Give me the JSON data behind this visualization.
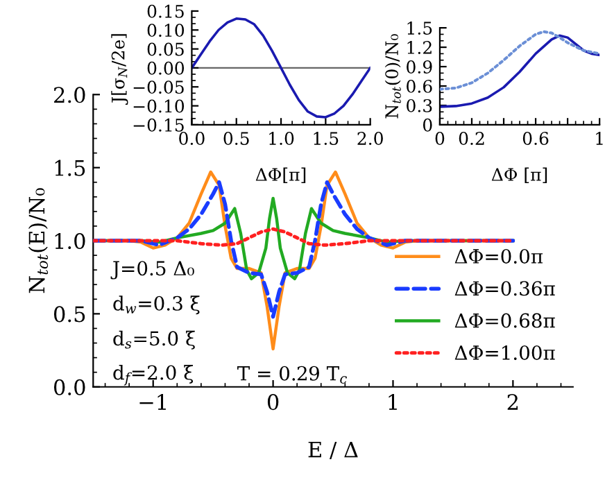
{
  "chart_data": [
    {
      "type": "line",
      "xlabel": "E / Δ",
      "ylabel": "N$_{tot}$(E)/N₀",
      "xlim": [
        -1.5,
        2.5
      ],
      "ylim": [
        0,
        2
      ],
      "xticks": [
        {
          "value": -1,
          "label": "−1"
        },
        0,
        1,
        2
      ],
      "yticks": [
        {
          "value": 0,
          "label": "0.0"
        },
        {
          "value": 0.5,
          "label": "0.5"
        },
        {
          "value": 1,
          "label": "1.0"
        },
        {
          "value": 1.5,
          "label": "1.5"
        },
        {
          "value": 2,
          "label": "2.0"
        }
      ],
      "legend": "lower right",
      "grid": false,
      "annotations": [
        "J=0.5 Δ₀",
        "d$_{w}$=0.3 ξ",
        "d$_{s}$=5.0 ξ",
        "d$_{f}$=2.0 ξ",
        "T = 0.29 T$_{c}$"
      ],
      "series": [
        {
          "name": "ΔΦ=0.0π",
          "color": "#ff8c1a",
          "line_style": "solid",
          "x": [
            -1.5,
            -1.2,
            -1.1,
            -1.0,
            -0.9,
            -0.8,
            -0.7,
            -0.6,
            -0.52,
            -0.45,
            -0.4,
            -0.35,
            -0.3,
            -0.2,
            -0.1,
            -0.05,
            0,
            0.05,
            0.1,
            0.2,
            0.3,
            0.35,
            0.4,
            0.45,
            0.52,
            0.6,
            0.7,
            0.8,
            0.9,
            1.0,
            1.1,
            1.2,
            2.0
          ],
          "values": [
            1.0,
            1.0,
            0.99,
            0.95,
            0.97,
            1.02,
            1.12,
            1.32,
            1.47,
            1.38,
            1.1,
            0.88,
            0.81,
            0.81,
            0.78,
            0.55,
            0.26,
            0.55,
            0.78,
            0.81,
            0.81,
            0.88,
            1.1,
            1.38,
            1.47,
            1.32,
            1.12,
            1.02,
            0.97,
            0.95,
            0.99,
            1.0,
            1.0
          ]
        },
        {
          "name": "ΔΦ=0.36π",
          "color": "#1a3cff",
          "line_style": "dashed",
          "x": [
            -1.5,
            -1.1,
            -0.95,
            -0.8,
            -0.7,
            -0.6,
            -0.5,
            -0.45,
            -0.4,
            -0.35,
            -0.3,
            -0.2,
            -0.1,
            -0.05,
            0,
            0.05,
            0.1,
            0.2,
            0.3,
            0.35,
            0.4,
            0.45,
            0.5,
            0.6,
            0.7,
            0.8,
            0.95,
            1.1,
            2.0
          ],
          "values": [
            1.0,
            1.0,
            0.97,
            1.02,
            1.08,
            1.18,
            1.32,
            1.4,
            1.25,
            1.0,
            0.82,
            0.78,
            0.77,
            0.65,
            0.48,
            0.65,
            0.77,
            0.78,
            0.82,
            1.0,
            1.25,
            1.4,
            1.32,
            1.18,
            1.08,
            1.02,
            0.97,
            1.0,
            1.0
          ]
        },
        {
          "name": "ΔΦ=0.68π",
          "color": "#22aa22",
          "line_style": "solid",
          "x": [
            -1.5,
            -1.1,
            -0.95,
            -0.8,
            -0.6,
            -0.5,
            -0.4,
            -0.32,
            -0.27,
            -0.22,
            -0.18,
            -0.12,
            -0.06,
            -0.03,
            0,
            0.03,
            0.06,
            0.12,
            0.18,
            0.22,
            0.27,
            0.32,
            0.4,
            0.5,
            0.6,
            0.8,
            0.95,
            1.1,
            2.0
          ],
          "values": [
            1.0,
            1.0,
            0.99,
            1.02,
            1.05,
            1.07,
            1.12,
            1.22,
            1.05,
            0.8,
            0.74,
            0.78,
            0.95,
            1.15,
            1.29,
            1.15,
            0.95,
            0.78,
            0.74,
            0.8,
            1.05,
            1.22,
            1.12,
            1.07,
            1.05,
            1.02,
            0.99,
            1.0,
            1.0
          ]
        },
        {
          "name": "ΔΦ=1.00π",
          "color": "#ff2020",
          "line_style": "dotted",
          "x": [
            -1.5,
            -0.8,
            -0.6,
            -0.43,
            -0.3,
            -0.2,
            -0.1,
            0,
            0.1,
            0.2,
            0.3,
            0.43,
            0.6,
            0.8,
            2.0
          ],
          "values": [
            1.0,
            1.0,
            0.98,
            0.97,
            0.98,
            1.02,
            1.06,
            1.08,
            1.06,
            1.02,
            0.98,
            0.97,
            0.98,
            1.0,
            1.0
          ]
        }
      ]
    },
    {
      "type": "line",
      "xlabel": "ΔΦ[π]",
      "ylabel": "J[σ$_{N}$/2e]",
      "xlim": [
        0,
        2
      ],
      "ylim": [
        -0.15,
        0.15
      ],
      "xticks": [
        {
          "value": 0,
          "label": "0.0"
        },
        {
          "value": 0.5,
          "label": "0.5"
        },
        {
          "value": 1,
          "label": "1.0"
        },
        {
          "value": 1.5,
          "label": "1.5"
        },
        {
          "value": 2,
          "label": "2.0"
        }
      ],
      "yticks": [
        {
          "value": -0.15,
          "label": "−0.15"
        },
        {
          "value": -0.1,
          "label": "−0.10"
        },
        {
          "value": -0.05,
          "label": "−0.05"
        },
        {
          "value": 0,
          "label": "0.00"
        },
        {
          "value": 0.05,
          "label": "0.05"
        },
        {
          "value": 0.1,
          "label": "0.10"
        },
        {
          "value": 0.15,
          "label": "0.15"
        }
      ],
      "ref_lines": [
        {
          "axis": "y",
          "value": 0,
          "color": "#666666"
        }
      ],
      "series": [
        {
          "color": "#1a1ab0",
          "line_style": "solid",
          "x": [
            0,
            0.1,
            0.2,
            0.3,
            0.4,
            0.5,
            0.6,
            0.7,
            0.8,
            0.9,
            1.0,
            1.1,
            1.2,
            1.3,
            1.4,
            1.5,
            1.6,
            1.7,
            1.8,
            1.9,
            2.0
          ],
          "values": [
            0,
            0.035,
            0.07,
            0.1,
            0.12,
            0.13,
            0.128,
            0.115,
            0.085,
            0.045,
            0,
            -0.045,
            -0.085,
            -0.115,
            -0.128,
            -0.13,
            -0.12,
            -0.1,
            -0.07,
            -0.035,
            0
          ]
        }
      ]
    },
    {
      "type": "line",
      "xlabel": "ΔΦ [π]",
      "ylabel": "N$_{tot}$(0)/N₀",
      "xlim": [
        0,
        1
      ],
      "ylim": [
        0,
        1.5
      ],
      "xticks": [
        0,
        0.2,
        {
          "value": 0.4,
          "label": null
        },
        0.6,
        {
          "value": 0.8,
          "label": null
        },
        1
      ],
      "yticks": [
        0,
        0.3,
        0.6,
        0.9,
        1.2,
        1.5
      ],
      "series": [
        {
          "color": "#6b8fd6",
          "line_style": "dotted",
          "x": [
            0,
            0.1,
            0.2,
            0.3,
            0.4,
            0.5,
            0.6,
            0.65,
            0.7,
            0.75,
            0.8,
            0.9,
            1.0
          ],
          "values": [
            0.55,
            0.57,
            0.65,
            0.8,
            1.0,
            1.22,
            1.4,
            1.44,
            1.42,
            1.35,
            1.27,
            1.15,
            1.1
          ]
        },
        {
          "color": "#1a1ab0",
          "line_style": "solid",
          "x": [
            0,
            0.1,
            0.2,
            0.3,
            0.4,
            0.5,
            0.6,
            0.7,
            0.75,
            0.8,
            0.85,
            0.9,
            0.95,
            1.0
          ],
          "values": [
            0.28,
            0.29,
            0.33,
            0.42,
            0.58,
            0.82,
            1.1,
            1.32,
            1.38,
            1.35,
            1.25,
            1.15,
            1.1,
            1.08
          ]
        }
      ]
    }
  ]
}
